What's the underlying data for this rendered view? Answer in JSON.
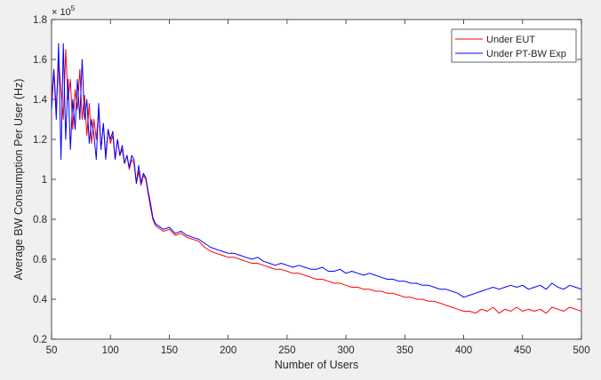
{
  "chart_data": {
    "type": "line",
    "xlabel": "Number of Users",
    "ylabel": "Average BW Consumption Per User (Hz)",
    "y_exponent_label": "× 10",
    "y_exponent_power": "5",
    "xlim": [
      50,
      500
    ],
    "ylim": [
      0.2,
      1.8
    ],
    "x_ticks": [
      50,
      100,
      150,
      200,
      250,
      300,
      350,
      400,
      450,
      500
    ],
    "x_tick_labels": [
      "50",
      "100",
      "150",
      "200",
      "250",
      "300",
      "350",
      "400",
      "450",
      "500"
    ],
    "y_ticks": [
      0.2,
      0.4,
      0.6,
      0.8,
      1.0,
      1.2,
      1.4,
      1.6,
      1.8
    ],
    "y_tick_labels": [
      "0.2",
      "0.4",
      "0.6",
      "0.8",
      "1",
      "1.2",
      "1.4",
      "1.6",
      "1.8"
    ],
    "grid": false,
    "legend_position": "top-right",
    "series": [
      {
        "name": "Under EUT",
        "color": "#ff0000",
        "x": [
          50,
          52,
          54,
          56,
          58,
          60,
          62,
          64,
          66,
          68,
          70,
          72,
          74,
          76,
          78,
          80,
          82,
          84,
          86,
          88,
          90,
          92,
          94,
          96,
          98,
          100,
          102,
          104,
          106,
          108,
          110,
          112,
          114,
          116,
          118,
          120,
          122,
          124,
          126,
          128,
          130,
          132,
          134,
          136,
          138,
          140,
          145,
          150,
          155,
          160,
          165,
          170,
          175,
          180,
          185,
          190,
          195,
          200,
          205,
          210,
          215,
          220,
          225,
          230,
          235,
          240,
          245,
          250,
          255,
          260,
          265,
          270,
          275,
          280,
          285,
          290,
          295,
          300,
          305,
          310,
          315,
          320,
          325,
          330,
          335,
          340,
          345,
          350,
          355,
          360,
          365,
          370,
          375,
          380,
          385,
          390,
          395,
          400,
          405,
          410,
          415,
          420,
          425,
          430,
          435,
          440,
          445,
          450,
          455,
          460,
          465,
          470,
          475,
          480,
          485,
          490,
          495,
          500
        ],
        "y": [
          1.4,
          1.55,
          1.35,
          1.6,
          1.45,
          1.3,
          1.65,
          1.4,
          1.5,
          1.25,
          1.45,
          1.35,
          1.55,
          1.3,
          1.42,
          1.22,
          1.38,
          1.18,
          1.3,
          1.2,
          1.35,
          1.15,
          1.28,
          1.12,
          1.25,
          1.18,
          1.22,
          1.1,
          1.2,
          1.12,
          1.15,
          1.08,
          1.12,
          1.05,
          1.1,
          1.08,
          0.98,
          1.04,
          0.97,
          1.02,
          1.0,
          0.93,
          0.86,
          0.8,
          0.77,
          0.76,
          0.74,
          0.75,
          0.72,
          0.73,
          0.71,
          0.7,
          0.69,
          0.66,
          0.64,
          0.63,
          0.62,
          0.61,
          0.61,
          0.6,
          0.59,
          0.58,
          0.58,
          0.57,
          0.56,
          0.55,
          0.55,
          0.54,
          0.53,
          0.53,
          0.52,
          0.51,
          0.5,
          0.5,
          0.49,
          0.48,
          0.48,
          0.47,
          0.46,
          0.46,
          0.45,
          0.45,
          0.44,
          0.44,
          0.43,
          0.43,
          0.42,
          0.41,
          0.41,
          0.4,
          0.4,
          0.39,
          0.39,
          0.38,
          0.37,
          0.36,
          0.35,
          0.34,
          0.34,
          0.33,
          0.35,
          0.34,
          0.36,
          0.33,
          0.35,
          0.34,
          0.36,
          0.34,
          0.35,
          0.34,
          0.35,
          0.33,
          0.36,
          0.35,
          0.34,
          0.36,
          0.35,
          0.34
        ]
      },
      {
        "name": "Under PT-BW Exp",
        "color": "#0000ff",
        "x": [
          50,
          52,
          54,
          56,
          58,
          60,
          62,
          64,
          66,
          68,
          70,
          72,
          74,
          76,
          78,
          80,
          82,
          84,
          86,
          88,
          90,
          92,
          94,
          96,
          98,
          100,
          102,
          104,
          106,
          108,
          110,
          112,
          114,
          116,
          118,
          120,
          122,
          124,
          126,
          128,
          130,
          132,
          134,
          136,
          138,
          140,
          145,
          150,
          155,
          160,
          165,
          170,
          175,
          180,
          185,
          190,
          195,
          200,
          205,
          210,
          215,
          220,
          225,
          230,
          235,
          240,
          245,
          250,
          255,
          260,
          265,
          270,
          275,
          280,
          285,
          290,
          295,
          300,
          305,
          310,
          315,
          320,
          325,
          330,
          335,
          340,
          345,
          350,
          355,
          360,
          365,
          370,
          375,
          380,
          385,
          390,
          395,
          400,
          405,
          410,
          415,
          420,
          425,
          430,
          435,
          440,
          445,
          450,
          455,
          460,
          465,
          470,
          475,
          480,
          485,
          490,
          495,
          500
        ],
        "y": [
          1.35,
          1.55,
          1.3,
          1.68,
          1.1,
          1.68,
          1.2,
          1.5,
          1.15,
          1.4,
          1.25,
          1.5,
          1.3,
          1.6,
          1.3,
          1.4,
          1.18,
          1.3,
          1.22,
          1.1,
          1.38,
          1.15,
          1.28,
          1.1,
          1.25,
          1.2,
          1.24,
          1.1,
          1.2,
          1.12,
          1.17,
          1.08,
          1.12,
          1.06,
          1.12,
          1.1,
          0.98,
          1.07,
          0.98,
          1.03,
          1.01,
          0.94,
          0.88,
          0.81,
          0.78,
          0.77,
          0.75,
          0.76,
          0.73,
          0.74,
          0.72,
          0.71,
          0.7,
          0.68,
          0.66,
          0.65,
          0.64,
          0.63,
          0.63,
          0.62,
          0.61,
          0.6,
          0.61,
          0.59,
          0.58,
          0.57,
          0.58,
          0.57,
          0.56,
          0.57,
          0.56,
          0.55,
          0.55,
          0.56,
          0.54,
          0.54,
          0.55,
          0.53,
          0.54,
          0.53,
          0.52,
          0.53,
          0.52,
          0.51,
          0.5,
          0.5,
          0.49,
          0.49,
          0.48,
          0.48,
          0.47,
          0.47,
          0.46,
          0.45,
          0.45,
          0.44,
          0.43,
          0.41,
          0.42,
          0.43,
          0.44,
          0.45,
          0.46,
          0.45,
          0.46,
          0.47,
          0.46,
          0.47,
          0.45,
          0.46,
          0.47,
          0.45,
          0.48,
          0.46,
          0.45,
          0.47,
          0.46,
          0.45
        ]
      }
    ]
  }
}
